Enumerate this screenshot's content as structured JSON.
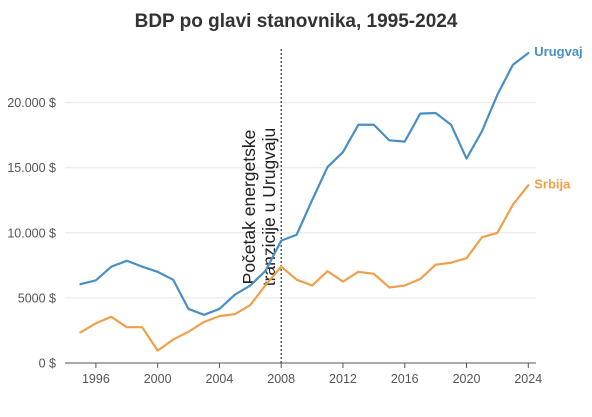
{
  "chart_data": {
    "type": "line",
    "title": "BDP po glavi stanovnika, 1995-2024",
    "xlabel": "",
    "ylabel": "",
    "xlim": [
      1994,
      2024.5
    ],
    "ylim": [
      0,
      24000
    ],
    "x_ticks": [
      1996,
      2000,
      2004,
      2008,
      2012,
      2016,
      2020,
      2024
    ],
    "y_ticks": [
      0,
      5000,
      10000,
      15000,
      20000
    ],
    "y_tick_labels": [
      "0 $",
      "5000 $",
      "10.000 $",
      "15.000 $",
      "20.000 $"
    ],
    "grid": "horizontal",
    "legend": "direct labels at line ends",
    "annotation": {
      "x": 2008,
      "lines": [
        "Početak energetske",
        "tranzicije u Urugvaju"
      ]
    },
    "x": [
      1995,
      1996,
      1997,
      1998,
      1999,
      2000,
      2001,
      2002,
      2003,
      2004,
      2005,
      2006,
      2007,
      2008,
      2009,
      2010,
      2011,
      2012,
      2013,
      2014,
      2015,
      2016,
      2017,
      2018,
      2019,
      2020,
      2021,
      2022,
      2023,
      2024
    ],
    "series": [
      {
        "name": "Urugvaj",
        "color": "#4a8fc4",
        "values": [
          6050,
          6350,
          7400,
          7850,
          7400,
          7000,
          6400,
          4150,
          3700,
          4150,
          5250,
          5950,
          7100,
          9400,
          9850,
          12500,
          15050,
          16200,
          18300,
          18300,
          17100,
          17000,
          19150,
          19200,
          18300,
          15700,
          17800,
          20600,
          22900,
          23800
        ]
      },
      {
        "name": "Srbija",
        "color": "#f0a04b",
        "values": [
          2350,
          3050,
          3550,
          2750,
          2750,
          950,
          1800,
          2400,
          3150,
          3600,
          3750,
          4450,
          6000,
          7400,
          6400,
          5950,
          7050,
          6250,
          7000,
          6850,
          5800,
          5950,
          6450,
          7550,
          7700,
          8050,
          9650,
          10000,
          12150,
          13650
        ]
      }
    ]
  }
}
